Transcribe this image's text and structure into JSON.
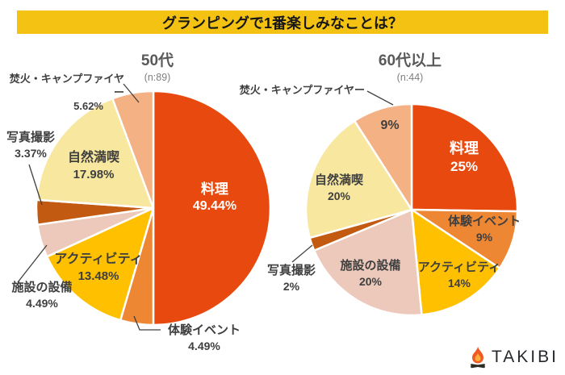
{
  "banner": {
    "title": "グランピングで1番楽しみなことは？",
    "bg_color": "#F3C213"
  },
  "brand": {
    "name": "TAKIBI",
    "flame_color": "#F15A24",
    "flame_core_color": "#FBB03B",
    "log_color": "#2E2A26",
    "text_color": "#26292E"
  },
  "chart_data": [
    {
      "type": "pie",
      "title": "50代",
      "n_label": "(n:89)",
      "start_angle": 0,
      "direction": "clockwise",
      "legend": "none",
      "slices": [
        {
          "key": "cooking",
          "label": "料理",
          "value": 49.44,
          "pct_text": "49.44%",
          "color": "#E8490E",
          "label_placement": "inside",
          "label_color": "#FFFFFF"
        },
        {
          "key": "experience-event",
          "label": "体験イベント",
          "value": 4.49,
          "pct_text": "4.49%",
          "color": "#ED8733",
          "label_placement": "callout"
        },
        {
          "key": "activity",
          "label": "アクティビティ",
          "value": 13.48,
          "pct_text": "13.48%",
          "color": "#FFC000",
          "label_placement": "inside"
        },
        {
          "key": "facility",
          "label": "施設の設備",
          "value": 4.49,
          "pct_text": "4.49%",
          "color": "#ECC9BA",
          "label_placement": "callout"
        },
        {
          "key": "photography",
          "label": "写真撮影",
          "value": 3.37,
          "pct_text": "3.37%",
          "color": "#C35A11",
          "label_placement": "callout"
        },
        {
          "key": "nature",
          "label": "自然満喫",
          "value": 17.98,
          "pct_text": "17.98%",
          "color": "#F7E79F",
          "label_placement": "inside"
        },
        {
          "key": "bonfire-campfire",
          "label": "焚火・キャンプファイヤー",
          "value": 5.62,
          "pct_text": "5.62%",
          "color": "#F4B183",
          "label_placement": "callout"
        }
      ]
    },
    {
      "type": "pie",
      "title": "60代以上",
      "n_label": "(n:44)",
      "start_angle": 0,
      "direction": "clockwise",
      "legend": "none",
      "slices": [
        {
          "key": "cooking",
          "label": "料理",
          "value": 25,
          "pct_text": "25%",
          "color": "#E8490E",
          "label_placement": "inside",
          "label_color": "#FFFFFF"
        },
        {
          "key": "experience-event",
          "label": "体験イベント",
          "value": 9,
          "pct_text": "9%",
          "color": "#ED8733",
          "label_placement": "inside"
        },
        {
          "key": "activity",
          "label": "アクティビティ",
          "value": 14,
          "pct_text": "14%",
          "color": "#FFC000",
          "label_placement": "inside"
        },
        {
          "key": "facility",
          "label": "施設の設備",
          "value": 20,
          "pct_text": "20%",
          "color": "#ECC9BA",
          "label_placement": "inside"
        },
        {
          "key": "photography",
          "label": "写真撮影",
          "value": 2,
          "pct_text": "2%",
          "color": "#C35A11",
          "label_placement": "callout"
        },
        {
          "key": "nature",
          "label": "自然満喫",
          "value": 20,
          "pct_text": "20%",
          "color": "#F7E79F",
          "label_placement": "inside"
        },
        {
          "key": "bonfire-campfire",
          "label": "焚火・キャンプファイヤー",
          "value": 9,
          "pct_text": "9%",
          "color": "#F4B183",
          "label_placement": "name-callout-pct-inside"
        }
      ]
    }
  ]
}
